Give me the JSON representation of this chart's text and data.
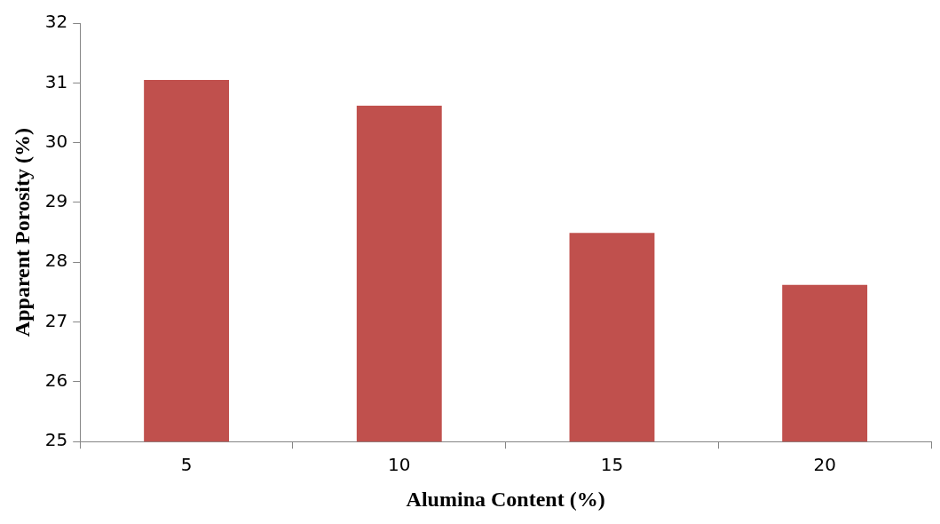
{
  "chart_data": {
    "type": "bar",
    "xlabel": "Alumina Content (%)",
    "ylabel": "Apparent Porosity (%)",
    "categories": [
      "5",
      "10",
      "15",
      "20"
    ],
    "values": [
      31.05,
      30.62,
      28.49,
      27.62
    ],
    "color": "#c0504d",
    "ylim": [
      25,
      32
    ],
    "yticks": [
      25,
      26,
      27,
      28,
      29,
      30,
      31,
      32
    ],
    "grid": false,
    "legend": false
  }
}
